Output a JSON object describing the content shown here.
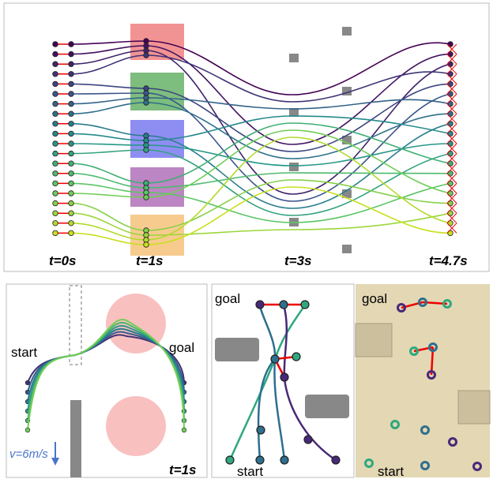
{
  "top_panel": {
    "time_labels": [
      "t=0s",
      "t=1s",
      "t=3s",
      "t=4.7s"
    ]
  },
  "left_panel": {
    "start": "start",
    "goal": "goal",
    "speed": "v=6m/s",
    "time": "t=1s"
  },
  "middle_panel": {
    "goal": "goal",
    "start": "start"
  },
  "right_panel": {
    "goal": "goal",
    "start": "start"
  }
}
